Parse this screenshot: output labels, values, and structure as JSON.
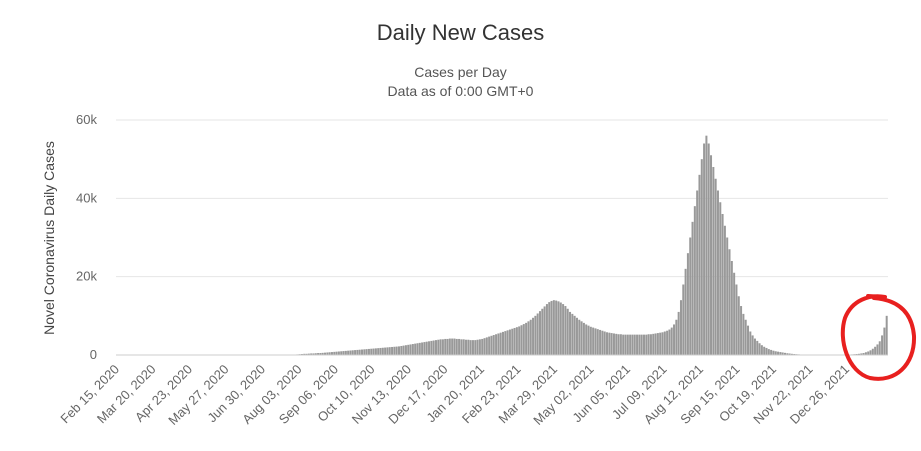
{
  "chart_data": {
    "type": "bar",
    "title": "Daily New Cases",
    "subtitle": "Cases per Day",
    "subtitle2": "Data as of 0:00 GMT+0",
    "ylabel": "Novel Coronavirus Daily Cases",
    "ylim": [
      0,
      60000
    ],
    "y_ticks": [
      "0",
      "20k",
      "40k",
      "60k"
    ],
    "y_tick_values": [
      0,
      20000,
      40000,
      60000
    ],
    "grid": true,
    "x_range": [
      "2020-02-15",
      "2022-01-18"
    ],
    "x_tick_labels": [
      "Feb 15, 2020",
      "Mar 20, 2020",
      "Apr 23, 2020",
      "May 27, 2020",
      "Jun 30, 2020",
      "Aug 03, 2020",
      "Sep 06, 2020",
      "Oct 10, 2020",
      "Nov 13, 2020",
      "Dec 17, 2020",
      "Jan 20, 2021",
      "Feb 23, 2021",
      "Mar 29, 2021",
      "May 02, 2021",
      "Jun 05, 2021",
      "Jul 09, 2021",
      "Aug 12, 2021",
      "Sep 15, 2021",
      "Oct 19, 2021",
      "Nov 22, 2021",
      "Dec 26, 2021"
    ],
    "bar_color": "#999999",
    "annotation_color": "#e8201f",
    "series": [
      {
        "values": [
          0,
          0,
          0,
          0,
          0,
          0,
          0,
          0,
          0,
          0,
          0,
          0,
          0,
          0,
          0,
          0,
          0,
          0,
          0,
          0,
          0,
          0,
          0,
          0,
          0,
          0,
          0,
          0,
          0,
          0,
          0,
          0,
          0,
          0,
          0,
          0,
          0,
          0,
          0,
          0,
          0,
          0,
          0,
          0,
          0,
          0,
          0,
          0,
          0,
          0,
          0,
          0,
          0,
          0,
          0,
          0,
          0,
          0,
          0,
          0,
          0,
          0,
          0,
          0,
          0,
          0,
          0,
          0,
          0,
          0,
          0,
          0,
          0,
          0,
          0,
          0,
          0,
          100,
          150,
          200,
          250,
          300,
          300,
          350,
          400,
          400,
          450,
          500,
          500,
          550,
          600,
          650,
          700,
          750,
          800,
          850,
          900,
          950,
          1000,
          1050,
          1100,
          1150,
          1200,
          1250,
          1300,
          1350,
          1400,
          1450,
          1500,
          1550,
          1600,
          1650,
          1700,
          1750,
          1800,
          1850,
          1900,
          1950,
          2000,
          2050,
          2100,
          2150,
          2200,
          2300,
          2400,
          2500,
          2600,
          2700,
          2800,
          2900,
          3000,
          3100,
          3200,
          3300,
          3400,
          3500,
          3600,
          3700,
          3800,
          3900,
          4000,
          4000,
          4100,
          4100,
          4200,
          4200,
          4200,
          4100,
          4100,
          4000,
          4000,
          3900,
          3900,
          3800,
          3800,
          3800,
          3900,
          4000,
          4100,
          4300,
          4500,
          4700,
          4900,
          5100,
          5300,
          5500,
          5700,
          5900,
          6100,
          6300,
          6500,
          6700,
          6900,
          7100,
          7300,
          7600,
          7900,
          8200,
          8600,
          9000,
          9500,
          10000,
          10600,
          11200,
          11800,
          12400,
          13000,
          13500,
          13800,
          14000,
          13900,
          13700,
          13400,
          13000,
          12500,
          11800,
          11000,
          10500,
          10000,
          9500,
          9000,
          8600,
          8200,
          7800,
          7500,
          7200,
          7000,
          6800,
          6600,
          6400,
          6200,
          6000,
          5800,
          5700,
          5600,
          5500,
          5400,
          5300,
          5300,
          5200,
          5200,
          5200,
          5200,
          5200,
          5200,
          5200,
          5200,
          5200,
          5200,
          5200,
          5300,
          5300,
          5400,
          5500,
          5600,
          5700,
          5800,
          6000,
          6200,
          6500,
          7000,
          7800,
          9000,
          11000,
          14000,
          18000,
          22000,
          26000,
          30000,
          34000,
          38000,
          42000,
          46000,
          50000,
          54000,
          56000,
          54000,
          51000,
          48000,
          45000,
          42000,
          39000,
          36000,
          33000,
          30000,
          27000,
          24000,
          21000,
          18000,
          15000,
          12500,
          10500,
          9000,
          7500,
          6000,
          5000,
          4200,
          3600,
          3000,
          2500,
          2100,
          1800,
          1500,
          1300,
          1100,
          950,
          850,
          750,
          650,
          550,
          450,
          380,
          300,
          250,
          200,
          160,
          120,
          100,
          80,
          60,
          50,
          40,
          30,
          30,
          30,
          30,
          30,
          30,
          30,
          30,
          40,
          40,
          50,
          50,
          60,
          70,
          80,
          100,
          150,
          200,
          250,
          300,
          400,
          500,
          700,
          900,
          1200,
          1600,
          2100,
          2700,
          3500,
          5000,
          7000,
          10000
        ]
      }
    ]
  }
}
